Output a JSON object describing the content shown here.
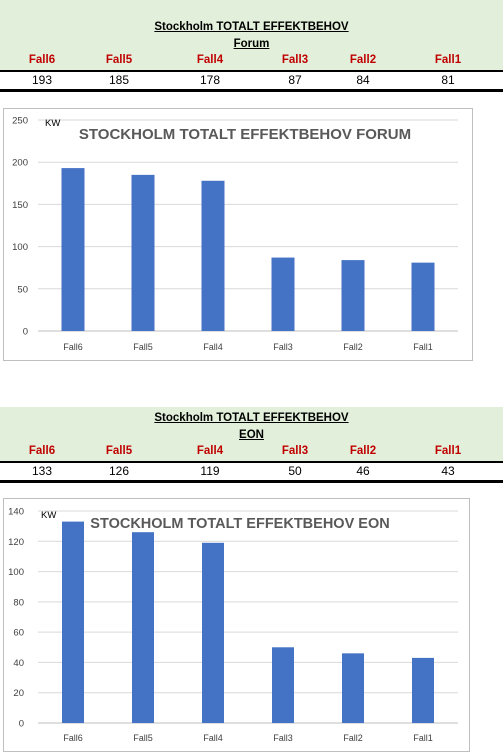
{
  "sections": [
    {
      "header": {
        "title_line1": "Stockholm TOTALT EFFEKTBEHOV",
        "title_line2": "Forum",
        "labels": [
          "Fall6",
          "Fall5",
          "Fall4",
          "Fall3",
          "Fall2",
          "Fall1"
        ],
        "values": [
          "193",
          "185",
          "178",
          "87",
          "84",
          "81"
        ]
      }
    },
    {
      "header": {
        "title_line1": "Stockholm TOTALT EFFEKTBEHOV",
        "title_line2": "EON",
        "labels": [
          "Fall6",
          "Fall5",
          "Fall4",
          "Fall3",
          "Fall2",
          "Fall1"
        ],
        "values": [
          "133",
          "126",
          "119",
          "50",
          "46",
          "43"
        ]
      }
    }
  ],
  "colors": {
    "bar": "#4472c4",
    "label_red": "#c00000",
    "header_bg": "#e2efda",
    "grid": "#d9d9d9",
    "title_gray": "#595959"
  },
  "chart_data": [
    {
      "type": "bar",
      "title": "STOCKHOLM TOTALT EFFEKTBEHOV  FORUM",
      "unit_label": "KW",
      "categories": [
        "Fall6",
        "Fall5",
        "Fall4",
        "Fall3",
        "Fall2",
        "Fall1"
      ],
      "values": [
        193,
        185,
        178,
        87,
        84,
        81
      ],
      "ylim": [
        0,
        250
      ],
      "yticks": [
        0,
        50,
        100,
        150,
        200,
        250
      ],
      "grid": true
    },
    {
      "type": "bar",
      "title": "STOCKHOLM TOTALT EFFEKTBEHOV EON",
      "unit_label": "KW",
      "categories": [
        "Fall6",
        "Fall5",
        "Fall4",
        "Fall3",
        "Fall2",
        "Fall1"
      ],
      "values": [
        133,
        126,
        119,
        50,
        46,
        43
      ],
      "ylim": [
        0,
        140
      ],
      "yticks": [
        0,
        20,
        40,
        60,
        80,
        100,
        120,
        140
      ],
      "grid": true
    }
  ]
}
